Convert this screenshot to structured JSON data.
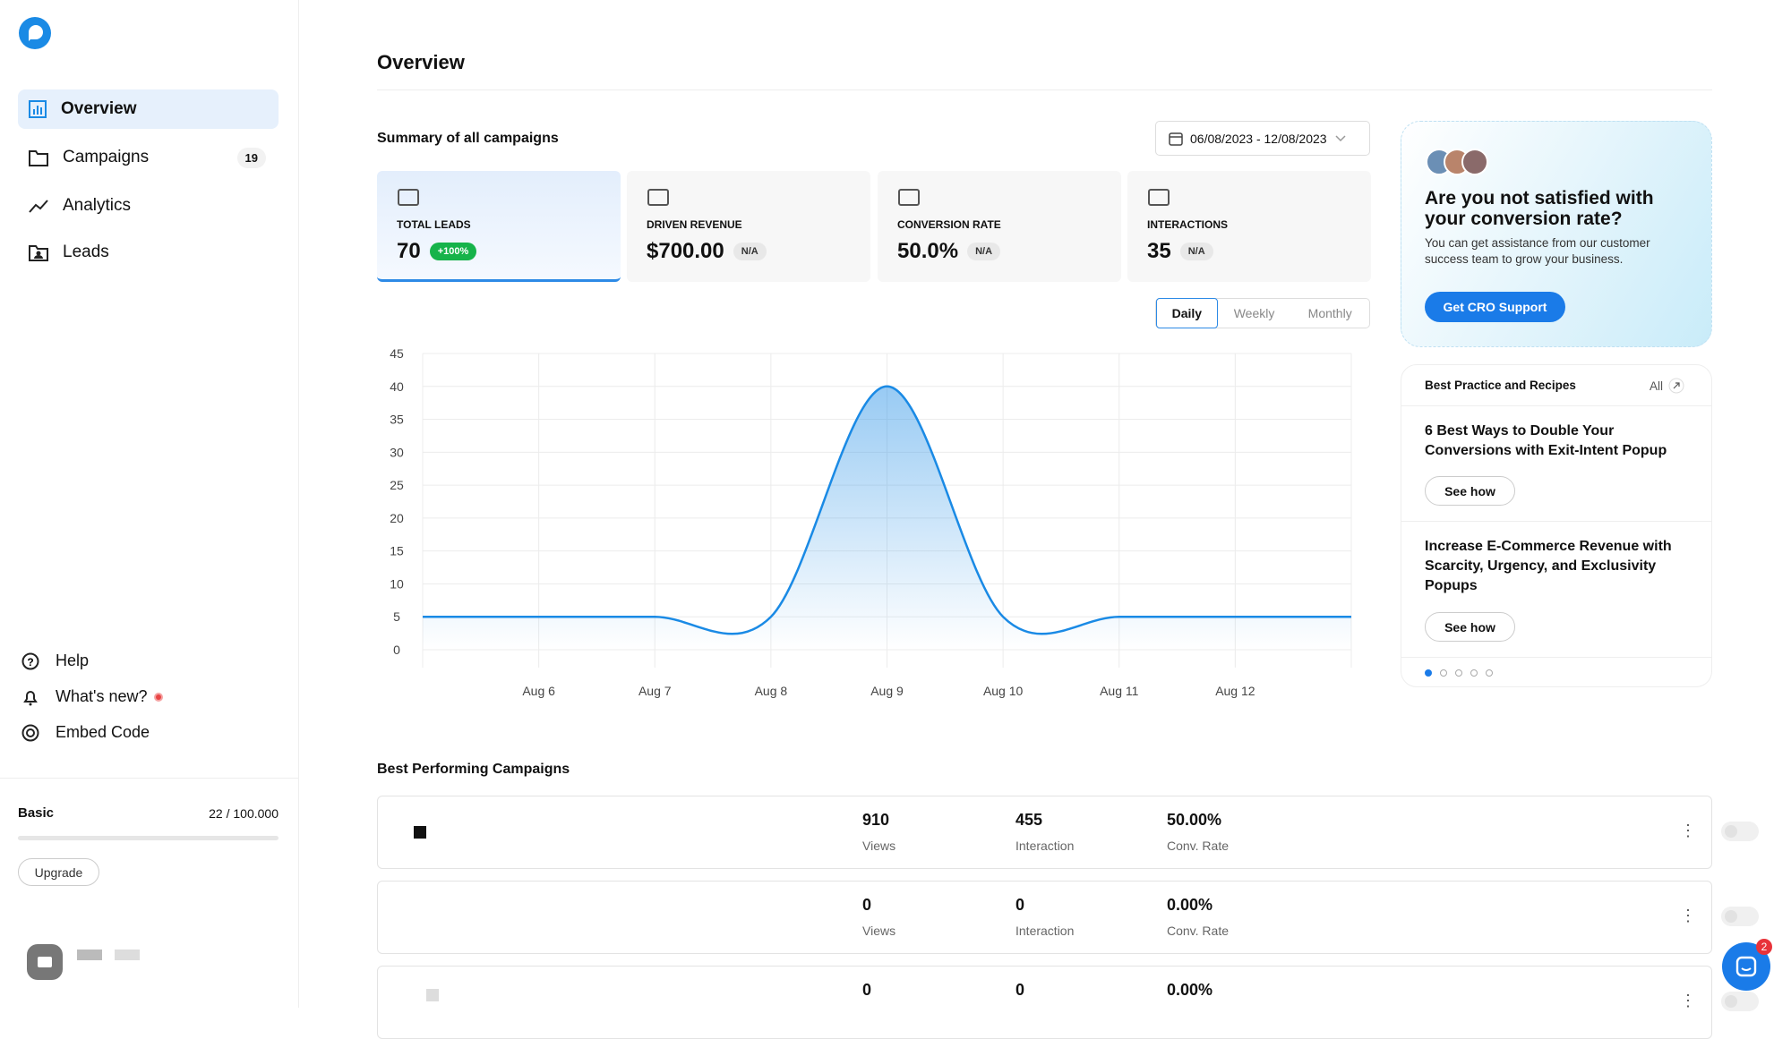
{
  "sidebar": {
    "nav": [
      {
        "label": "Overview"
      },
      {
        "label": "Campaigns",
        "badge": "19"
      },
      {
        "label": "Analytics"
      },
      {
        "label": "Leads"
      }
    ],
    "bottom": [
      "Help",
      "What's new?",
      "Embed Code"
    ],
    "plan": "Basic",
    "usage": "22 / 100.000",
    "upgrade": "Upgrade"
  },
  "header": {
    "title": "Overview"
  },
  "summary": {
    "title": "Summary of all campaigns",
    "date_range": "06/08/2023 - 12/08/2023",
    "stats": [
      {
        "label": "TOTAL LEADS",
        "value": "70",
        "change": "+100%"
      },
      {
        "label": "DRIVEN REVENUE",
        "value": "$700.00",
        "change": "N/A"
      },
      {
        "label": "CONVERSION RATE",
        "value": "50.0%",
        "change": "N/A"
      },
      {
        "label": "INTERACTIONS",
        "value": "35",
        "change": "N/A"
      }
    ],
    "tabs": [
      "Daily",
      "Weekly",
      "Monthly"
    ]
  },
  "chart_data": {
    "type": "line",
    "categories": [
      null,
      "Aug 6",
      "Aug 7",
      "Aug 8",
      "Aug 9",
      "Aug 10",
      "Aug 11",
      "Aug 12",
      null
    ],
    "series": [
      {
        "color": "#1a8ae5",
        "values": [
          5,
          5,
          5,
          5,
          40,
          5,
          5,
          5,
          5
        ]
      }
    ],
    "ylim": [
      0,
      45
    ],
    "yticks": [
      0,
      5,
      10,
      15,
      20,
      25,
      30,
      35,
      40,
      45
    ],
    "grid": true
  },
  "promo": {
    "title": "Are you not satisfied with your conversion rate?",
    "text": "You can get assistance from our customer success team to grow your business.",
    "button": "Get CRO Support"
  },
  "best_practices": {
    "title": "Best Practice and Recipes",
    "all": "All",
    "items": [
      {
        "title": "6 Best Ways to Double Your Conversions with Exit-Intent Popup",
        "button": "See how"
      },
      {
        "title": "Increase E-Commerce Revenue with Scarcity, Urgency, and Exclusivity Popups",
        "button": "See how"
      }
    ]
  },
  "campaigns": {
    "title": "Best Performing Campaigns",
    "rows": [
      {
        "views": "910",
        "views_label": "Views",
        "interaction": "455",
        "interaction_label": "Interaction",
        "rate": "50.00%",
        "rate_label": "Conv. Rate"
      },
      {
        "views": "0",
        "views_label": "Views",
        "interaction": "0",
        "interaction_label": "Interaction",
        "rate": "0.00%",
        "rate_label": "Conv. Rate"
      },
      {
        "views": "0",
        "interaction": "0",
        "rate": "0.00%"
      }
    ]
  },
  "chat_badge": "2"
}
